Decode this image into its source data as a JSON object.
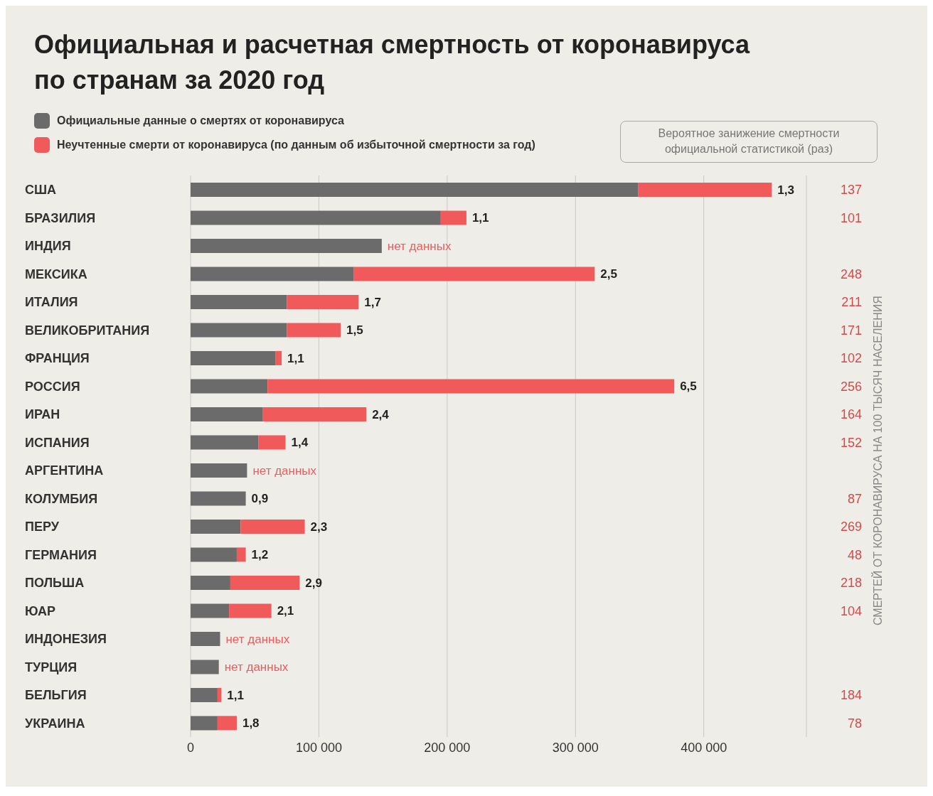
{
  "chart_data": {
    "type": "bar",
    "orientation": "horizontal",
    "stacked": true,
    "title": "Официальная и расчетная смертность от коронавируса по странам за 2020 год",
    "categories": [
      "США",
      "БРАЗИЛИЯ",
      "ИНДИЯ",
      "МЕКСИКА",
      "ИТАЛИЯ",
      "ВЕЛИКОБРИТАНИЯ",
      "ФРАНЦИЯ",
      "РОССИЯ",
      "ИРАН",
      "ИСПАНИЯ",
      "АРГЕНТИНА",
      "КОЛУМБИЯ",
      "ПЕРУ",
      "ГЕРМАНИЯ",
      "ПОЛЬША",
      "ЮАР",
      "ИНДОНЕЗИЯ",
      "ТУРЦИЯ",
      "БЕЛЬГИЯ",
      "УКРАИНА"
    ],
    "y2_categories": [
      "137",
      "101",
      null,
      "248",
      "211",
      "171",
      "102",
      "256",
      "164",
      "152",
      null,
      "87",
      "269",
      "48",
      "218",
      "104",
      null,
      null,
      "184",
      "78"
    ],
    "series": [
      {
        "name": "Официальные данные о смертях от коронавируса",
        "color": "#6b6b6b",
        "values": [
          349000,
          195000,
          149000,
          127000,
          75000,
          75000,
          66000,
          60000,
          56000,
          53000,
          44000,
          43000,
          39000,
          36000,
          31000,
          30000,
          23000,
          22000,
          21000,
          21000
        ]
      },
      {
        "name": "Неучтенные смерти от коронавируса (по данным об избыточной смертности за год)",
        "color": "#f05a5a",
        "values": [
          104000,
          20000,
          null,
          188000,
          56000,
          42000,
          5000,
          317000,
          81000,
          21000,
          null,
          0,
          50000,
          7000,
          54000,
          33000,
          null,
          null,
          3000,
          15000
        ]
      }
    ],
    "xlim": [
      0,
      480000
    ],
    "xticks": [
      0,
      {
        "value": 100000,
        "label": "100 000"
      },
      {
        "value": 200000,
        "label": "200 000"
      },
      {
        "value": 300000,
        "label": "300 000"
      },
      {
        "value": 400000,
        "label": "400 000"
      }
    ],
    "grid": "x",
    "legend": "top left",
    "annotations": [
      "Вероятное занижение смертности официальной статистикой (раз)",
      "СМЕРТЕЙ ОТ КОРОНАВИРУСА НА 100 ТЫСЯЧ НАСЕЛЕНИЯ",
      {
        "text": "1,3",
        "x": 453000,
        "y": "США"
      },
      {
        "text": "1,1",
        "x": 215000,
        "y": "БРАЗИЛИЯ"
      },
      {
        "text": "нет данных",
        "x": 149000,
        "y": "ИНДИЯ"
      },
      {
        "text": "2,5",
        "x": 315000,
        "y": "МЕКСИКА"
      },
      {
        "text": "1,7",
        "x": 131000,
        "y": "ИТАЛИЯ"
      },
      {
        "text": "1,5",
        "x": 117000,
        "y": "ВЕЛИКОБРИТАНИЯ"
      },
      {
        "text": "1,1",
        "x": 71000,
        "y": "ФРАНЦИЯ"
      },
      {
        "text": "6,5",
        "x": 377000,
        "y": "РОССИЯ"
      },
      {
        "text": "2,4",
        "x": 137000,
        "y": "ИРАН"
      },
      {
        "text": "1,4",
        "x": 74000,
        "y": "ИСПАНИЯ"
      },
      {
        "text": "нет данных",
        "x": 44000,
        "y": "АРГЕНТИНА"
      },
      {
        "text": "0,9",
        "x": 43000,
        "y": "КОЛУМБИЯ"
      },
      {
        "text": "2,3",
        "x": 89000,
        "y": "ПЕРУ"
      },
      {
        "text": "1,2",
        "x": 43000,
        "y": "ГЕРМАНИЯ"
      },
      {
        "text": "2,9",
        "x": 85000,
        "y": "ПОЛЬША"
      },
      {
        "text": "2,1",
        "x": 63000,
        "y": "ЮАР"
      },
      {
        "text": "нет данных",
        "x": 23000,
        "y": "ИНДОНЕЗИЯ"
      },
      {
        "text": "нет данных",
        "x": 22000,
        "y": "ТУРЦИЯ"
      },
      {
        "text": "1,1",
        "x": 24000,
        "y": "БЕЛЬГИЯ"
      },
      {
        "text": "1,8",
        "x": 36000,
        "y": "УКРАИНА"
      }
    ]
  }
}
